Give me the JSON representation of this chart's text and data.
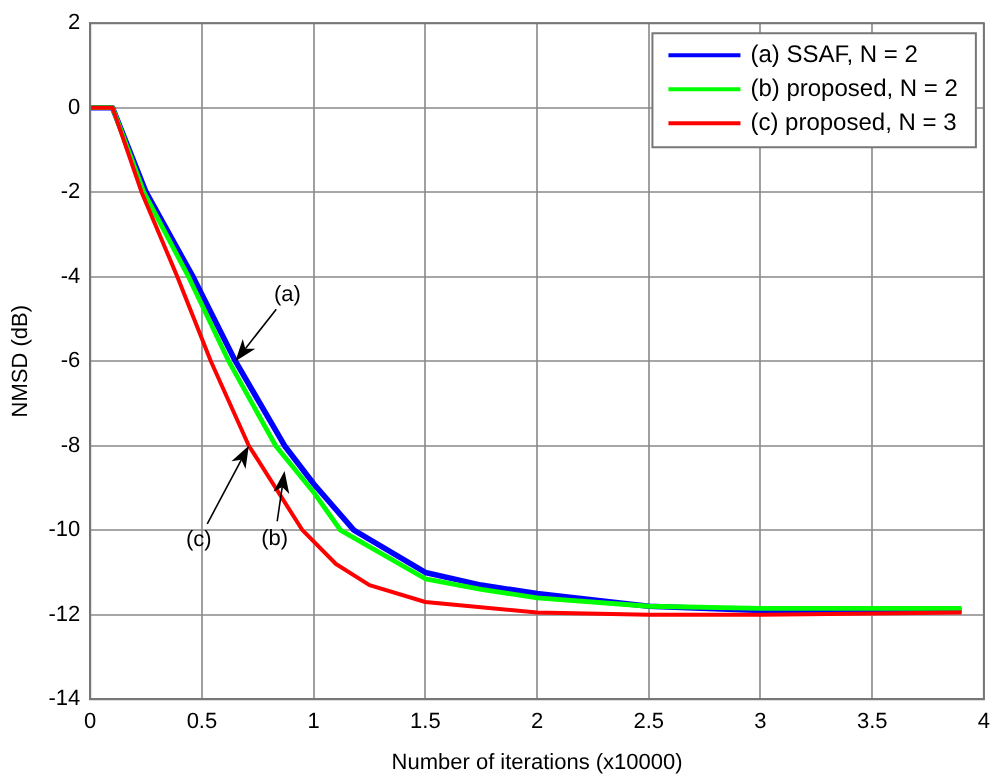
{
  "chart_data": {
    "type": "line",
    "xlabel": "Number of iterations (x10000)",
    "ylabel": "NMSD (dB)",
    "xlim": [
      0,
      4
    ],
    "xticks": [
      0,
      0.5,
      1,
      1.5,
      2,
      2.5,
      3,
      3.5,
      4
    ],
    "ylim": [
      -14,
      2
    ],
    "yticks": [
      -14,
      -12,
      -10,
      -8,
      -6,
      -4,
      -2,
      0,
      2
    ],
    "grid": true,
    "legend": "top right",
    "marker": "none",
    "line_style": "solid",
    "series": [
      {
        "name": "(a) SSAF, N = 2",
        "color": "#0000ff",
        "x": [
          0,
          0.1,
          0.25,
          0.46,
          0.65,
          0.87,
          1.0,
          1.18,
          1.5,
          1.75,
          2,
          2.5,
          3,
          3.5,
          3.9
        ],
        "values": [
          0,
          0,
          -2,
          -4,
          -6,
          -8,
          -8.9,
          -10,
          -11,
          -11.3,
          -11.5,
          -11.8,
          -11.9,
          -11.9,
          -11.9
        ]
      },
      {
        "name": "(b) proposed, N = 2",
        "color": "#00ff00",
        "x": [
          0,
          0.1,
          0.24,
          0.44,
          0.62,
          0.83,
          1.0,
          1.12,
          1.5,
          1.75,
          2,
          2.5,
          3,
          3.9
        ],
        "values": [
          0,
          0,
          -2,
          -4,
          -6,
          -8,
          -9.1,
          -10,
          -11.15,
          -11.4,
          -11.6,
          -11.8,
          -11.85,
          -11.85
        ]
      },
      {
        "name": "(c) proposed, N = 3",
        "color": "#ff0000",
        "x": [
          0,
          0.1,
          0.23,
          0.39,
          0.54,
          0.71,
          0.95,
          1.1,
          1.25,
          1.5,
          2,
          2.5,
          3,
          3.9
        ],
        "values": [
          0,
          0,
          -2,
          -4,
          -6,
          -8,
          -10,
          -10.8,
          -11.3,
          -11.7,
          -11.95,
          -12,
          -12,
          -11.95
        ]
      }
    ],
    "annotations": [
      {
        "text": "(a)",
        "x": 0.65,
        "y": -6
      },
      {
        "text": "(b)",
        "x": 0.87,
        "y": -8.6
      },
      {
        "text": "(c)",
        "x": 0.71,
        "y": -8
      }
    ]
  }
}
